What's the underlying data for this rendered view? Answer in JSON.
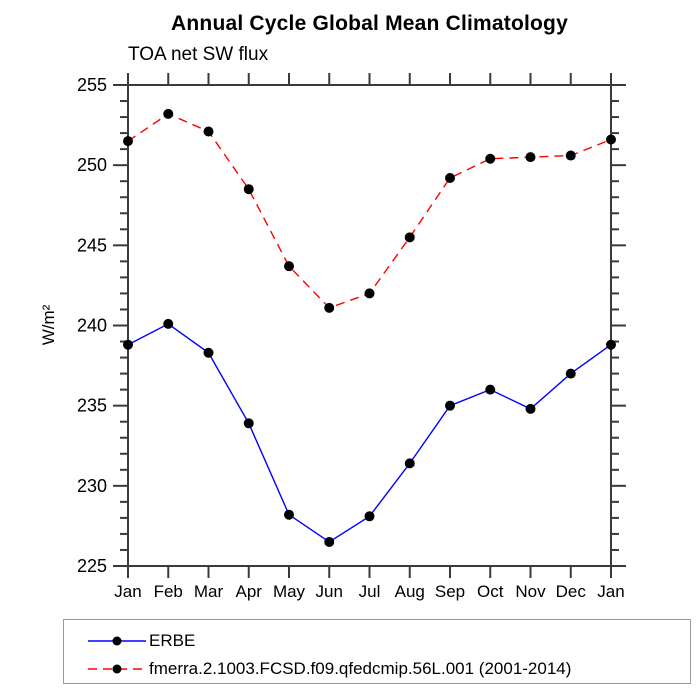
{
  "chart_data": {
    "type": "line",
    "title": "Annual Cycle Global Mean Climatology",
    "subtitle": "TOA net SW flux",
    "ylabel": "W/m²",
    "xlabel": "",
    "categories": [
      "Jan",
      "Feb",
      "Mar",
      "Apr",
      "May",
      "Jun",
      "Jul",
      "Aug",
      "Sep",
      "Oct",
      "Nov",
      "Dec",
      "Jan"
    ],
    "series": [
      {
        "name": "ERBE",
        "color": "#0000ff",
        "line_style": "solid",
        "marker": "circle",
        "marker_color": "#000000",
        "values": [
          238.8,
          240.1,
          238.3,
          233.9,
          228.2,
          226.5,
          228.1,
          231.4,
          235.0,
          236.0,
          234.8,
          237.0,
          238.8
        ]
      },
      {
        "name": "fmerra.2.1003.FCSD.f09.qfedcmip.56L.001 (2001-2014)",
        "color": "#ff0000",
        "line_style": "dashed",
        "marker": "circle",
        "marker_color": "#000000",
        "values": [
          251.5,
          253.2,
          252.1,
          248.5,
          243.7,
          241.1,
          242.0,
          245.5,
          249.2,
          250.4,
          250.5,
          250.6,
          251.6
        ]
      }
    ],
    "ylim": [
      225,
      255
    ],
    "y_major_step": 5,
    "y_minor_step": 1,
    "grid": false,
    "legend_position": "bottom",
    "axis_color": "#3a3a3a"
  }
}
